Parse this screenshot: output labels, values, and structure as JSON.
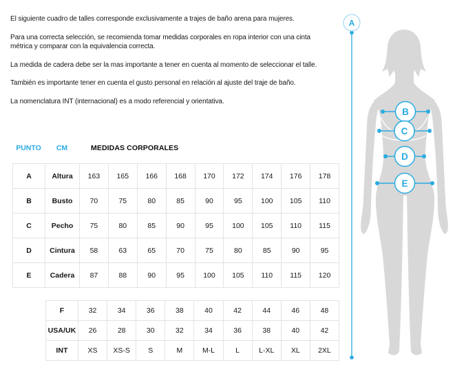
{
  "colors": {
    "accent": "#29abe2",
    "silhouette_gray": "#d8d8d8",
    "table_border": "#e3e3e3",
    "text": "#161616"
  },
  "intro": {
    "paragraphs": [
      "El siguiente cuadro de talles corresponde exclusivamente a trajes de baño arena para mujeres.",
      "Para una correcta selección, se recomienda tomar medidas corporales en ropa interior con una cinta\nmétrica y comparar con la equivalencia correcta.",
      "La medida de cadera debe ser la mas importante a tener en cuenta al momento de seleccionar el talle.",
      "También es importante tener en cuenta el gusto personal en relación al ajuste del traje de baño.",
      "La nomenclatura INT (internacional) es a modo referencial y orientativa."
    ]
  },
  "size_chart": {
    "header": {
      "punto_label": "PUNTO",
      "cm_label": "CM",
      "title": "MEDIDAS CORPORALES"
    },
    "body_rows": [
      {
        "point": "A",
        "label": "Altura",
        "values": [
          "163",
          "165",
          "166",
          "168",
          "170",
          "172",
          "174",
          "176",
          "178"
        ]
      },
      {
        "point": "B",
        "label": "Busto",
        "values": [
          "70",
          "75",
          "80",
          "85",
          "90",
          "95",
          "100",
          "105",
          "110"
        ]
      },
      {
        "point": "C",
        "label": "Pecho",
        "values": [
          "75",
          "80",
          "85",
          "90",
          "95",
          "100",
          "105",
          "110",
          "115"
        ]
      },
      {
        "point": "D",
        "label": "Cintura",
        "values": [
          "58",
          "63",
          "65",
          "70",
          "75",
          "80",
          "85",
          "90",
          "95"
        ]
      },
      {
        "point": "E",
        "label": "Cadera",
        "values": [
          "87",
          "88",
          "90",
          "95",
          "100",
          "105",
          "110",
          "115",
          "120"
        ]
      }
    ],
    "size_rows": [
      {
        "label": "F",
        "values": [
          "32",
          "34",
          "36",
          "38",
          "40",
          "42",
          "44",
          "46",
          "48"
        ]
      },
      {
        "label": "USA/UK",
        "values": [
          "26",
          "28",
          "30",
          "32",
          "34",
          "36",
          "38",
          "40",
          "42"
        ]
      },
      {
        "label": "INT",
        "values": [
          "XS",
          "XS-S",
          "S",
          "M",
          "M-L",
          "L",
          "L-XL",
          "XL",
          "2XL"
        ]
      }
    ]
  },
  "figure": {
    "markers": [
      {
        "id": "A",
        "label": "A"
      },
      {
        "id": "B",
        "label": "B"
      },
      {
        "id": "C",
        "label": "C"
      },
      {
        "id": "D",
        "label": "D"
      },
      {
        "id": "E",
        "label": "E"
      }
    ]
  }
}
